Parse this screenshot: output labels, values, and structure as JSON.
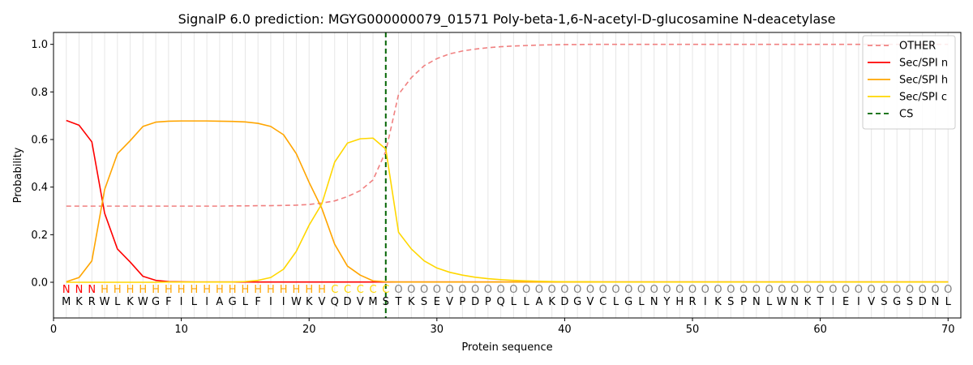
{
  "chart_data": {
    "type": "line",
    "title": "SignalP 6.0 prediction: MGYG000000079_01571 Poly-beta-1,6-N-acetyl-D-glucosamine N-deacetylase",
    "xlabel": "Protein sequence",
    "ylabel": "Probability",
    "xlim": [
      0,
      71
    ],
    "ylim": [
      -0.15,
      1.05
    ],
    "x_ticks": [
      0,
      10,
      20,
      30,
      40,
      50,
      60,
      70
    ],
    "y_ticks": [
      0.0,
      0.2,
      0.4,
      0.6,
      0.8,
      1.0
    ],
    "grid": "vertical lines at each residue",
    "legend_position": "top-right",
    "sequence": [
      "M",
      "K",
      "R",
      "W",
      "L",
      "K",
      "W",
      "G",
      "F",
      "I",
      "L",
      "I",
      "A",
      "G",
      "L",
      "F",
      "I",
      "I",
      "W",
      "K",
      "V",
      "Q",
      "D",
      "V",
      "M",
      "S",
      "T",
      "K",
      "S",
      "E",
      "V",
      "P",
      "D",
      "P",
      "Q",
      "L",
      "L",
      "A",
      "K",
      "D",
      "G",
      "V",
      "C",
      "L",
      "G",
      "L",
      "N",
      "Y",
      "H",
      "R",
      "I",
      "K",
      "S",
      "P",
      "N",
      "L",
      "W",
      "N",
      "K",
      "T",
      "I",
      "E",
      "I",
      "V",
      "S",
      "G",
      "S",
      "D",
      "N",
      "L"
    ],
    "region_labels": [
      "N",
      "N",
      "N",
      "H",
      "H",
      "H",
      "H",
      "H",
      "H",
      "H",
      "H",
      "H",
      "H",
      "H",
      "H",
      "H",
      "H",
      "H",
      "H",
      "H",
      "H",
      "C",
      "C",
      "C",
      "C",
      "C",
      "O",
      "O",
      "O",
      "O",
      "O",
      "O",
      "O",
      "O",
      "O",
      "O",
      "O",
      "O",
      "O",
      "O",
      "O",
      "O",
      "O",
      "O",
      "O",
      "O",
      "O",
      "O",
      "O",
      "O",
      "O",
      "O",
      "O",
      "O",
      "O",
      "O",
      "O",
      "O",
      "O",
      "O",
      "O",
      "O",
      "O",
      "O",
      "O",
      "O",
      "O",
      "O",
      "O",
      "O"
    ],
    "region_colors": {
      "N": "#ff0000",
      "H": "#ffa500",
      "C": "#ffd700",
      "O": "#808080"
    },
    "cs_position": 26,
    "series": [
      {
        "name": "OTHER",
        "color": "#f08080",
        "dash": true,
        "values": [
          0.32,
          0.32,
          0.32,
          0.32,
          0.32,
          0.32,
          0.32,
          0.32,
          0.32,
          0.32,
          0.32,
          0.32,
          0.32,
          0.321,
          0.321,
          0.322,
          0.322,
          0.323,
          0.324,
          0.327,
          0.333,
          0.342,
          0.36,
          0.385,
          0.43,
          0.55,
          0.79,
          0.86,
          0.91,
          0.94,
          0.96,
          0.972,
          0.98,
          0.986,
          0.99,
          0.993,
          0.995,
          0.997,
          0.998,
          0.999,
          0.999,
          1.0,
          1.0,
          1.0,
          1.0,
          1.0,
          1.0,
          1.0,
          1.0,
          1.0,
          1.0,
          1.0,
          1.0,
          1.0,
          1.0,
          1.0,
          1.0,
          1.0,
          1.0,
          1.0,
          1.0,
          1.0,
          1.0,
          1.0,
          1.0,
          1.0,
          1.0,
          1.0,
          1.0,
          1.0
        ]
      },
      {
        "name": "Sec/SPI n",
        "color": "#ff0000",
        "dash": false,
        "values": [
          0.68,
          0.66,
          0.59,
          0.29,
          0.14,
          0.085,
          0.025,
          0.008,
          0.003,
          0.002,
          0.001,
          0.001,
          0.001,
          0.001,
          0.001,
          0.001,
          0.001,
          0.001,
          0.001,
          0.001,
          0.001,
          0.001,
          0.001,
          0.001,
          0.001,
          0.001,
          0.001,
          0.001,
          0.001,
          0.001,
          0.001,
          0.001,
          0.001,
          0.001,
          0.001,
          0.001,
          0.001,
          0.001,
          0.001,
          0.001,
          0.001,
          0.001,
          0.001,
          0.001,
          0.001,
          0.001,
          0.001,
          0.001,
          0.001,
          0.001,
          0.001,
          0.001,
          0.001,
          0.001,
          0.001,
          0.001,
          0.001,
          0.001,
          0.001,
          0.001,
          0.001,
          0.001,
          0.001,
          0.001,
          0.001,
          0.001,
          0.001,
          0.001,
          0.001,
          0.001
        ]
      },
      {
        "name": "Sec/SPI h",
        "color": "#ffa500",
        "dash": false,
        "values": [
          0.002,
          0.02,
          0.09,
          0.39,
          0.54,
          0.595,
          0.655,
          0.673,
          0.677,
          0.678,
          0.678,
          0.678,
          0.677,
          0.676,
          0.674,
          0.668,
          0.655,
          0.62,
          0.54,
          0.42,
          0.31,
          0.16,
          0.068,
          0.03,
          0.006,
          0.002,
          0.001,
          0.001,
          0.001,
          0.001,
          0.001,
          0.001,
          0.001,
          0.001,
          0.001,
          0.001,
          0.001,
          0.001,
          0.001,
          0.001,
          0.001,
          0.001,
          0.001,
          0.001,
          0.001,
          0.001,
          0.001,
          0.001,
          0.001,
          0.001,
          0.001,
          0.001,
          0.001,
          0.001,
          0.001,
          0.001,
          0.001,
          0.001,
          0.001,
          0.001,
          0.001,
          0.001,
          0.001,
          0.001,
          0.001,
          0.001,
          0.001,
          0.001,
          0.001,
          0.001
        ]
      },
      {
        "name": "Sec/SPI c",
        "color": "#ffd700",
        "dash": false,
        "values": [
          0.0,
          0.0,
          0.0,
          0.0,
          0.0,
          0.0,
          0.0,
          0.0,
          0.001,
          0.001,
          0.001,
          0.001,
          0.001,
          0.001,
          0.003,
          0.008,
          0.02,
          0.055,
          0.13,
          0.24,
          0.33,
          0.505,
          0.585,
          0.603,
          0.606,
          0.56,
          0.21,
          0.14,
          0.09,
          0.06,
          0.042,
          0.03,
          0.021,
          0.015,
          0.011,
          0.008,
          0.006,
          0.004,
          0.003,
          0.002,
          0.002,
          0.002,
          0.001,
          0.001,
          0.001,
          0.001,
          0.001,
          0.001,
          0.001,
          0.001,
          0.001,
          0.001,
          0.001,
          0.001,
          0.001,
          0.001,
          0.001,
          0.001,
          0.001,
          0.001,
          0.001,
          0.001,
          0.001,
          0.001,
          0.001,
          0.001,
          0.001,
          0.001,
          0.001,
          0.001
        ]
      },
      {
        "name": "CS",
        "color": "#006400",
        "dash": true,
        "values": []
      }
    ]
  }
}
